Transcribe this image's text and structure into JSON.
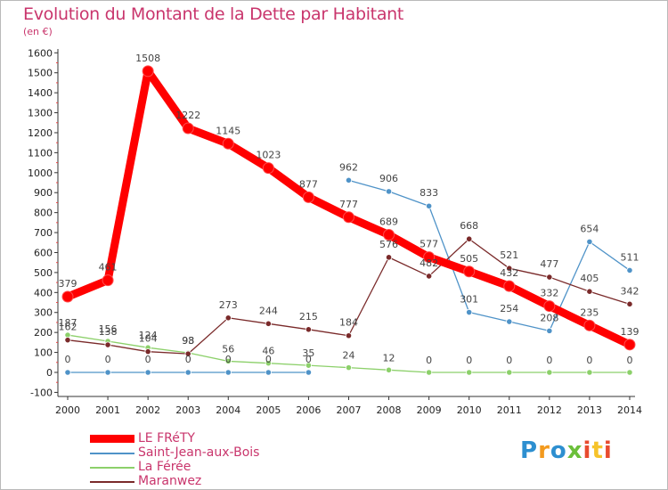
{
  "header": {
    "title": "Evolution du Montant de la Dette par Habitant",
    "unit": "(en €)"
  },
  "brand": {
    "name": "Proxiti",
    "colors": [
      "#2d8fd0",
      "#f39a1e",
      "#2d8fd0",
      "#6bbf3a",
      "#e84b2e",
      "#f6c32a",
      "#e84b2e"
    ]
  },
  "chart_data": {
    "type": "line",
    "title": "Evolution du Montant de la Dette par Habitant",
    "subtitle": "(en €)",
    "xlabel": "",
    "ylabel": "",
    "ylim": [
      -100,
      1600
    ],
    "yticks": [
      "-100",
      "0",
      "100",
      "200",
      "300",
      "400",
      "500",
      "600",
      "700",
      "800",
      "900",
      "1000",
      "1100",
      "1200",
      "1300",
      "1400",
      "1500",
      "1600"
    ],
    "categories": [
      "2000",
      "2001",
      "2002",
      "2003",
      "2004",
      "2005",
      "2006",
      "2007",
      "2008",
      "2009",
      "2010",
      "2011",
      "2012",
      "2013",
      "2014"
    ],
    "grid": false,
    "legend_position": "bottom-left",
    "series": [
      {
        "name": "LE FRéTY",
        "color": "#ff0000",
        "values": [
          379,
          461,
          1508,
          1222,
          1145,
          1023,
          877,
          777,
          689,
          577,
          505,
          432,
          332,
          235,
          139
        ],
        "labels": [
          "379",
          "461",
          "1508",
          "1222",
          "1145",
          "1023",
          "877",
          "777",
          "689",
          "577",
          "505",
          "432",
          "332",
          "235",
          "139"
        ]
      },
      {
        "name": "Saint-Jean-aux-Bois",
        "color": "#4f93c8",
        "values": [
          0,
          0,
          0,
          0,
          0,
          0,
          0,
          962,
          906,
          833,
          301,
          254,
          208,
          654,
          511
        ],
        "labels": [
          "0",
          "0",
          "0",
          "0",
          "0",
          "0",
          "0",
          "962",
          "906",
          "833",
          "301",
          "254",
          "208",
          "654",
          "511"
        ],
        "gaps": [
          6
        ]
      },
      {
        "name": "La Férée",
        "color": "#8cd06a",
        "values": [
          187,
          156,
          124,
          98,
          56,
          46,
          35,
          24,
          12,
          0,
          0,
          0,
          0,
          0,
          0
        ],
        "labels": [
          "187",
          "156",
          "124",
          "98",
          "56",
          "46",
          "35",
          "24",
          "12",
          "0",
          "0",
          "0",
          "0",
          "0",
          "0"
        ]
      },
      {
        "name": "Maranwez",
        "color": "#7a2a2a",
        "values": [
          162,
          138,
          104,
          93,
          273,
          244,
          215,
          184,
          576,
          482,
          668,
          521,
          477,
          405,
          342
        ],
        "labels": [
          "162",
          "138",
          "104",
          "93",
          "273",
          "244",
          "215",
          "184",
          "576",
          "482",
          "668",
          "521",
          "477",
          "405",
          "342"
        ]
      }
    ]
  }
}
